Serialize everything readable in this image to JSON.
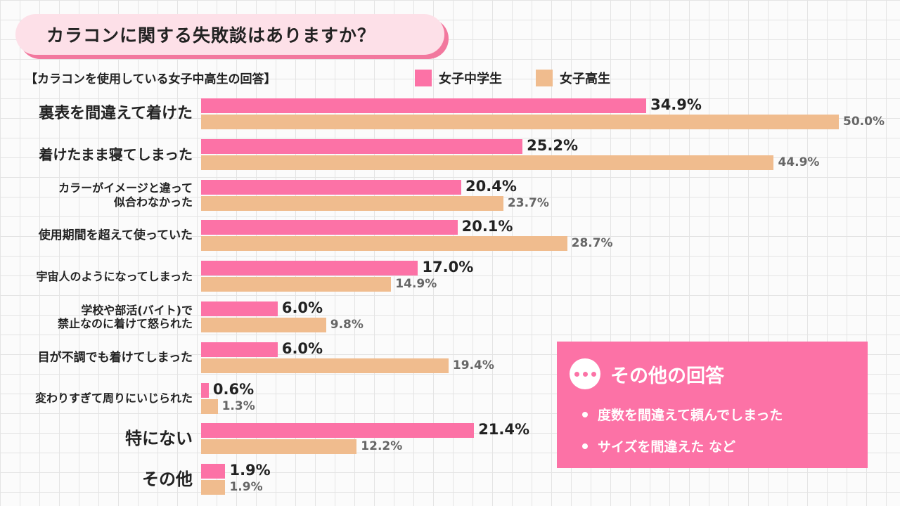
{
  "title": "カラコンに関する失敗談はありますか？",
  "subtitle": "【カラコンを使用している女子中高生の回答】",
  "colors": {
    "series1": "#fc72a6",
    "series2": "#f0bc8e",
    "title_bg": "#fde0e8",
    "title_shadow": "#f2789e"
  },
  "chart_data": {
    "type": "bar",
    "orientation": "horizontal",
    "title": "カラコンに関する失敗談はありますか？",
    "subtitle": "【カラコンを使用している女子中高生の回答】",
    "categories": [
      [
        "裏表を間違えて着けた"
      ],
      [
        "着けたまま寝てしまった"
      ],
      [
        "カラーがイメージと違って",
        "似合わなかった"
      ],
      [
        "使用期間を超えて使っていた"
      ],
      [
        "宇宙人のようになってしまった"
      ],
      [
        "学校や部活(バイト)で",
        "禁止なのに着けて怒られた"
      ],
      [
        "目が不調でも着けてしまった"
      ],
      [
        "変わりすぎて周りにいじられた"
      ],
      [
        "特にない"
      ],
      [
        "その他"
      ]
    ],
    "series": [
      {
        "name": "女子中学生",
        "values": [
          34.9,
          25.2,
          20.4,
          20.1,
          17.0,
          6.0,
          6.0,
          0.6,
          21.4,
          1.9
        ]
      },
      {
        "name": "女子高生",
        "values": [
          50.0,
          44.9,
          23.7,
          28.7,
          14.9,
          9.8,
          19.4,
          1.3,
          12.2,
          1.9
        ]
      }
    ],
    "unit": "%",
    "xlim": [
      0,
      50
    ],
    "legend": "top"
  },
  "other_answers": {
    "title": "その他の回答",
    "items": [
      "度数を間違えて頼んでしまった",
      "サイズを間違えた など"
    ]
  }
}
